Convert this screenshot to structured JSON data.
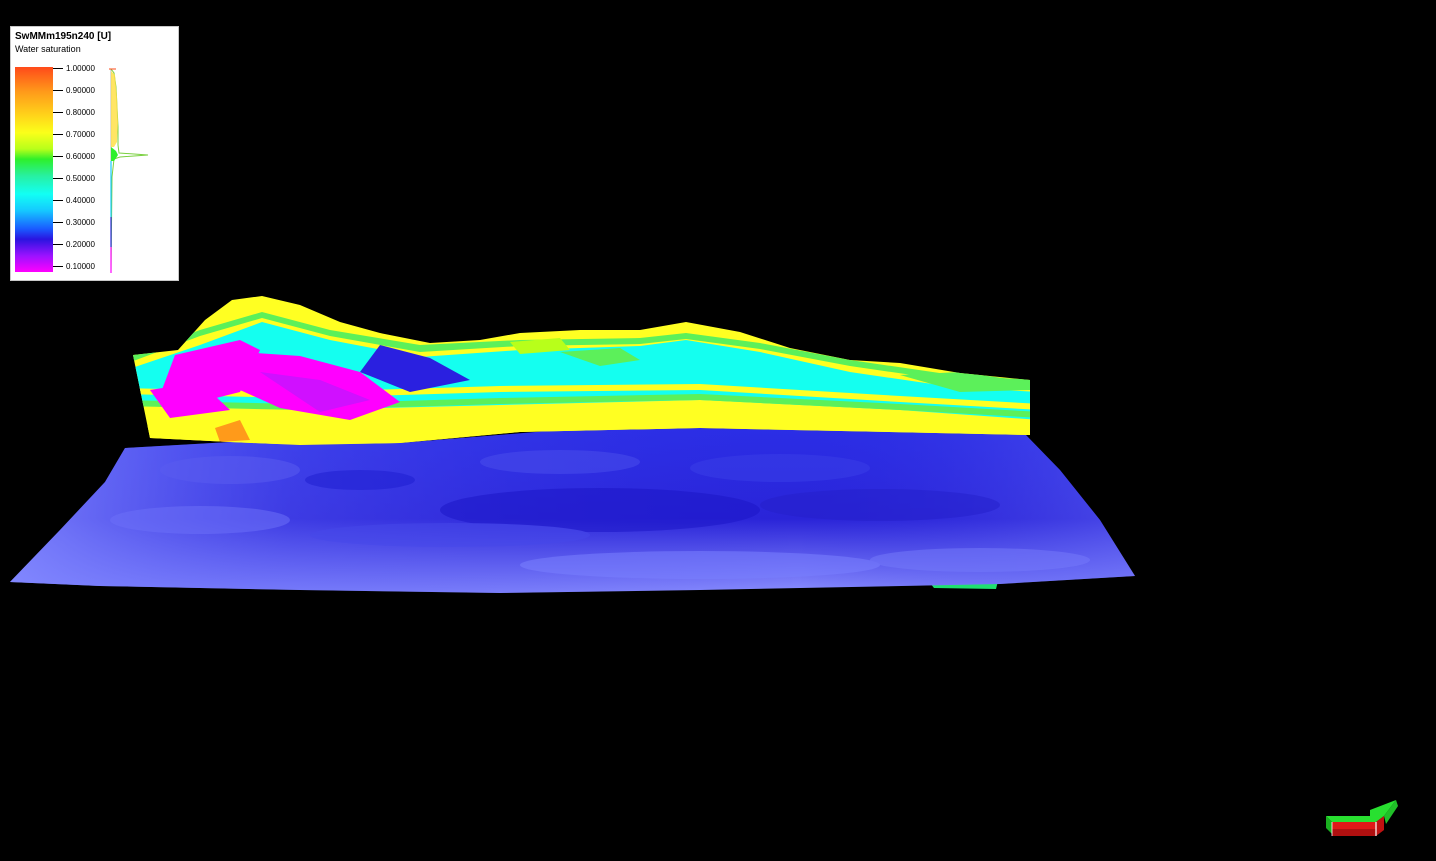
{
  "legend": {
    "title": "SwMMm195n240 [U]",
    "subtitle": "Water saturation",
    "ticks": [
      {
        "label": "1.00000",
        "value": 1.0
      },
      {
        "label": "0.90000",
        "value": 0.9
      },
      {
        "label": "0.80000",
        "value": 0.8
      },
      {
        "label": "0.70000",
        "value": 0.7
      },
      {
        "label": "0.60000",
        "value": 0.6
      },
      {
        "label": "0.50000",
        "value": 0.5
      },
      {
        "label": "0.40000",
        "value": 0.4
      },
      {
        "label": "0.30000",
        "value": 0.3
      },
      {
        "label": "0.20000",
        "value": 0.2
      },
      {
        "label": "0.10000",
        "value": 0.1
      }
    ]
  },
  "colors": {
    "background": "#000000",
    "surface_blue": "#3a3cf0",
    "surface_light": "#7d82ff",
    "section_yellow": "#ffff22",
    "section_cyan": "#10ffee",
    "section_magenta": "#ff00ff",
    "section_green": "#5cf05a",
    "nav_green": "#22d02a",
    "nav_red": "#e01818"
  },
  "icons": {
    "navigation": "orientation-arrow-icon"
  }
}
